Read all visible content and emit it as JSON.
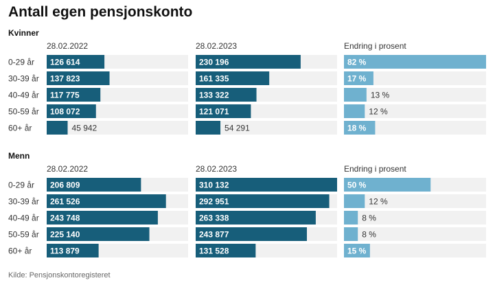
{
  "title": "Antall egen pensjonskonto",
  "source": "Kilde: Pensjonskontoregisteret",
  "colors": {
    "dark_bar": "#175e7a",
    "light_bar": "#6fb1cf",
    "track": "#f1f1f1"
  },
  "chart_data": [
    {
      "type": "bar",
      "group": "Kvinner",
      "categories": [
        "0-29 år",
        "30-39 år",
        "40-49 år",
        "50-59 år",
        "60+ år"
      ],
      "series": [
        {
          "name": "28.02.2022",
          "values": [
            126614,
            137823,
            117775,
            108072,
            45942
          ],
          "labels": [
            "126 614",
            "137 823",
            "117 775",
            "108 072",
            "45 942"
          ]
        },
        {
          "name": "28.02.2023",
          "values": [
            230196,
            161335,
            133322,
            121071,
            54291
          ],
          "labels": [
            "230 196",
            "161 335",
            "133 322",
            "121 071",
            "54 291"
          ]
        },
        {
          "name": "Endring i prosent",
          "values": [
            82,
            17,
            13,
            12,
            18
          ],
          "labels": [
            "82 %",
            "17 %",
            "13 %",
            "12 %",
            "18 %"
          ]
        }
      ]
    },
    {
      "type": "bar",
      "group": "Menn",
      "categories": [
        "0-29 år",
        "30-39 år",
        "40-49 år",
        "50-59 år",
        "60+ år"
      ],
      "series": [
        {
          "name": "28.02.2022",
          "values": [
            206809,
            261526,
            243748,
            225140,
            113879
          ],
          "labels": [
            "206 809",
            "261 526",
            "243 748",
            "225 140",
            "113 879"
          ]
        },
        {
          "name": "28.02.2023",
          "values": [
            310132,
            292951,
            263338,
            243877,
            131528
          ],
          "labels": [
            "310 132",
            "292 951",
            "263 338",
            "243 877",
            "131 528"
          ]
        },
        {
          "name": "Endring i prosent",
          "values": [
            50,
            12,
            8,
            8,
            15
          ],
          "labels": [
            "50 %",
            "12 %",
            "8 %",
            "8 %",
            "15 %"
          ]
        }
      ]
    }
  ]
}
